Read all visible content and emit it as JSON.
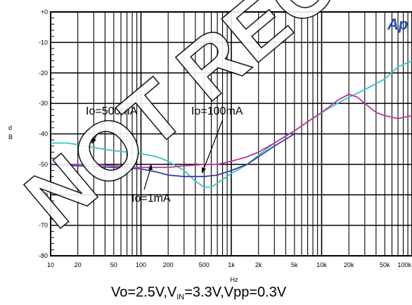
{
  "chart_data": {
    "type": "line",
    "ylabel_lines": [
      "d",
      "B"
    ],
    "xlabel": "Hz",
    "x_scale": "log",
    "xlim": [
      10,
      100000
    ],
    "ylim": [
      -80,
      0
    ],
    "grid": true,
    "y_ticks": [
      "+0",
      "-10",
      "-20",
      "-30",
      "-40",
      "-50",
      "-60",
      "-70",
      "-80"
    ],
    "x_ticks": [
      {
        "v": 10,
        "label": "10"
      },
      {
        "v": 20,
        "label": "20"
      },
      {
        "v": 50,
        "label": "50"
      },
      {
        "v": 100,
        "label": "100"
      },
      {
        "v": 200,
        "label": "200"
      },
      {
        "v": 500,
        "label": "500"
      },
      {
        "v": 1000,
        "label": "1k"
      },
      {
        "v": 2000,
        "label": "2k"
      },
      {
        "v": 5000,
        "label": "5k"
      },
      {
        "v": 10000,
        "label": "10k"
      },
      {
        "v": 20000,
        "label": "20k"
      },
      {
        "v": 50000,
        "label": "50k"
      },
      {
        "v": 100000,
        "label": "100k"
      }
    ],
    "series": [
      {
        "color": "#3cc4c4",
        "points": [
          [
            10,
            -43
          ],
          [
            15,
            -43
          ],
          [
            20,
            -43.5
          ],
          [
            30,
            -44.5
          ],
          [
            50,
            -45.5
          ],
          [
            70,
            -46
          ],
          [
            100,
            -46.5
          ],
          [
            150,
            -47.5
          ],
          [
            200,
            -49
          ],
          [
            300,
            -52
          ],
          [
            400,
            -55.5
          ],
          [
            500,
            -57.5
          ],
          [
            600,
            -57.5
          ],
          [
            800,
            -55
          ],
          [
            1000,
            -53
          ],
          [
            1500,
            -50
          ],
          [
            2000,
            -47
          ],
          [
            3000,
            -43
          ],
          [
            5000,
            -39
          ],
          [
            7000,
            -36
          ],
          [
            10000,
            -33
          ],
          [
            15000,
            -30
          ],
          [
            20000,
            -28
          ],
          [
            30000,
            -25.5
          ],
          [
            50000,
            -22
          ],
          [
            70000,
            -18
          ],
          [
            100000,
            -16
          ]
        ]
      },
      {
        "color": "#b8399a",
        "points": [
          [
            10,
            -50
          ],
          [
            20,
            -50
          ],
          [
            30,
            -50
          ],
          [
            50,
            -50.5
          ],
          [
            100,
            -51
          ],
          [
            200,
            -51
          ],
          [
            300,
            -50.5
          ],
          [
            500,
            -50
          ],
          [
            700,
            -50
          ],
          [
            1000,
            -49
          ],
          [
            1500,
            -47.5
          ],
          [
            2000,
            -46
          ],
          [
            3000,
            -43
          ],
          [
            5000,
            -39
          ],
          [
            7000,
            -36
          ],
          [
            10000,
            -33
          ],
          [
            15000,
            -29
          ],
          [
            20000,
            -27
          ],
          [
            25000,
            -28
          ],
          [
            30000,
            -30
          ],
          [
            40000,
            -33
          ],
          [
            50000,
            -34
          ],
          [
            70000,
            -35
          ],
          [
            100000,
            -34
          ]
        ]
      },
      {
        "color": "#3b3ea8",
        "points": [
          [
            10,
            -50
          ],
          [
            20,
            -50.5
          ],
          [
            50,
            -51
          ],
          [
            100,
            -51.5
          ],
          [
            150,
            -52.5
          ],
          [
            200,
            -53.5
          ],
          [
            300,
            -54
          ],
          [
            500,
            -54
          ],
          [
            700,
            -53.5
          ],
          [
            1000,
            -52
          ],
          [
            1500,
            -50
          ],
          [
            2000,
            -47.5
          ],
          [
            3000,
            -44
          ],
          [
            5000,
            -40
          ]
        ]
      }
    ],
    "annotations": [
      {
        "text": "Io=500mA"
      },
      {
        "text": "Io=100mA"
      },
      {
        "text": "Io=1mA"
      }
    ]
  },
  "caption": {
    "prefix": "Vo=2.5V,V",
    "sub": "IN",
    "suffix": "=3.3V,Vpp=0.3V"
  },
  "logo_text": "Ap",
  "watermark": "NOT RECOMMENDED FOR NEW DESIGN"
}
